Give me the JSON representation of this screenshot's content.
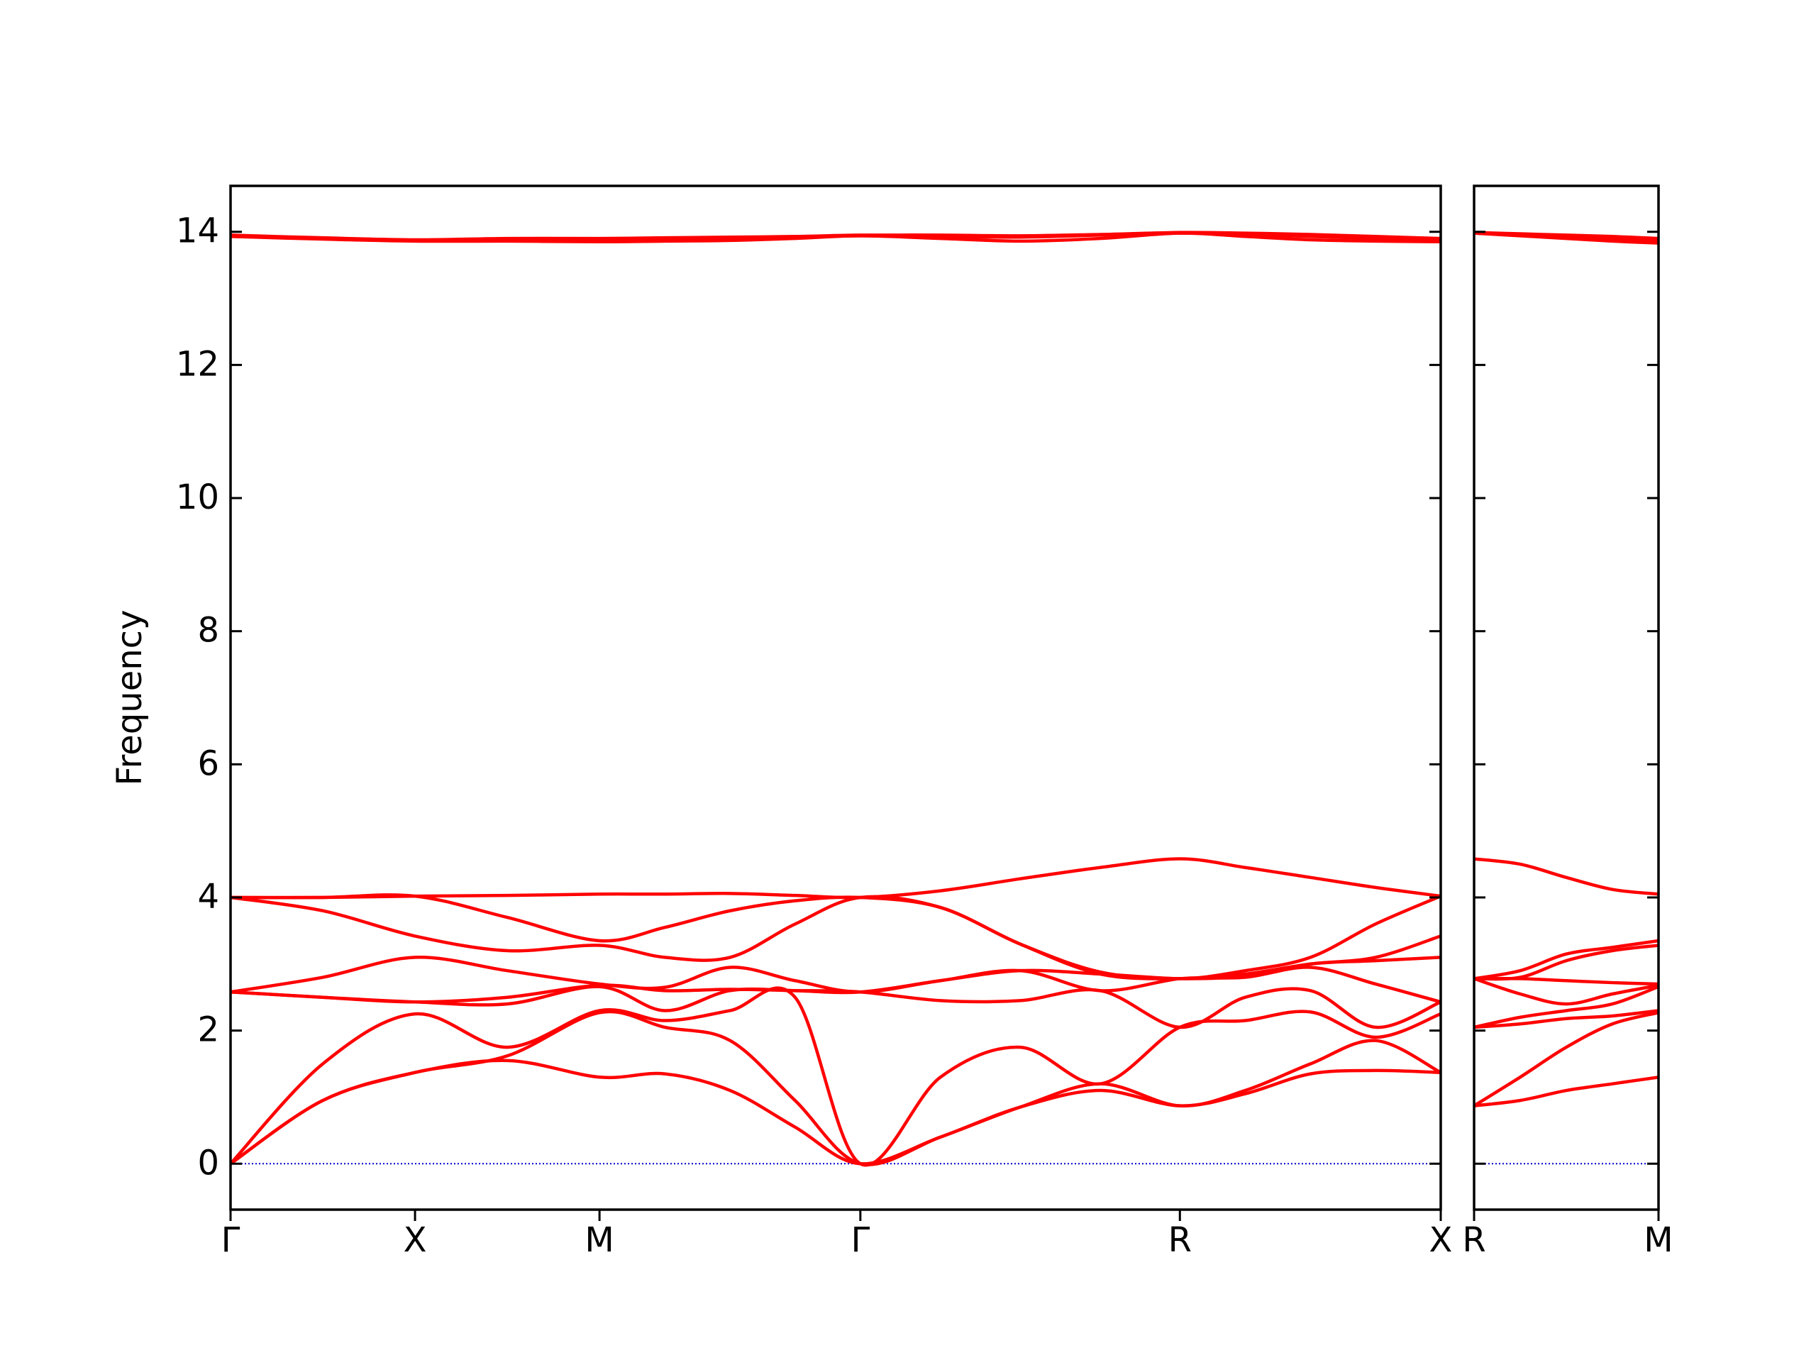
{
  "chart_data": [
    {
      "type": "line",
      "ylabel": "Frequency",
      "color": "#ff0000",
      "x": [
        0,
        0.25,
        0.5,
        0.75,
        1.0,
        1.177,
        1.354,
        1.53,
        1.707,
        1.924,
        2.14,
        2.357,
        2.573,
        2.75,
        2.927,
        3.103,
        3.28
      ],
      "xlim": [
        0,
        3.28
      ],
      "xticks": [
        {
          "value": 0,
          "label": "Γ"
        },
        {
          "value": 0.5,
          "label": "X"
        },
        {
          "value": 1.0,
          "label": "M"
        },
        {
          "value": 1.707,
          "label": "Γ"
        },
        {
          "value": 2.573,
          "label": "R"
        },
        {
          "value": 3.28,
          "label": "X"
        }
      ],
      "ylim": [
        -0.69,
        14.69
      ],
      "yticks": [
        0,
        2,
        4,
        6,
        8,
        10,
        12,
        14
      ],
      "ytick_labels": true,
      "mirror_ticks": true,
      "zero_line": {
        "y": 0,
        "color": "#0000cc"
      },
      "series": [
        {
          "values": [
            0,
            0.95,
            1.37,
            1.55,
            1.3,
            1.35,
            1.1,
            0.55,
            0,
            0.4,
            0.85,
            1.1,
            0.87,
            1.05,
            1.35,
            1.4,
            1.37
          ]
        },
        {
          "values": [
            0,
            0.95,
            1.37,
            1.62,
            2.27,
            2.05,
            1.85,
            0.95,
            0,
            0.4,
            0.85,
            1.2,
            0.87,
            1.1,
            1.5,
            1.85,
            1.37
          ]
        },
        {
          "values": [
            0,
            1.5,
            2.25,
            1.75,
            2.3,
            2.15,
            2.3,
            2.5,
            0,
            1.3,
            1.75,
            1.2,
            2.05,
            2.15,
            2.28,
            1.9,
            2.25
          ]
        },
        {
          "values": [
            2.58,
            2.5,
            2.43,
            2.4,
            2.66,
            2.3,
            2.6,
            2.6,
            2.58,
            2.45,
            2.45,
            2.6,
            2.05,
            2.5,
            2.6,
            2.05,
            2.43
          ]
        },
        {
          "values": [
            2.58,
            2.5,
            2.43,
            2.5,
            2.68,
            2.6,
            2.62,
            2.6,
            2.58,
            2.75,
            2.9,
            2.6,
            2.78,
            2.8,
            2.95,
            2.7,
            2.43
          ]
        },
        {
          "values": [
            2.58,
            2.8,
            3.1,
            2.9,
            2.7,
            2.65,
            2.95,
            2.75,
            2.58,
            2.75,
            2.9,
            2.85,
            2.78,
            2.82,
            3.0,
            3.05,
            3.1
          ]
        },
        {
          "values": [
            4.0,
            3.8,
            3.42,
            3.2,
            3.28,
            3.1,
            3.1,
            3.6,
            4.0,
            3.85,
            3.3,
            2.85,
            2.78,
            2.85,
            3.0,
            3.1,
            3.42
          ]
        },
        {
          "values": [
            4.0,
            4.0,
            4.02,
            3.7,
            3.35,
            3.55,
            3.8,
            3.95,
            4.0,
            3.85,
            3.3,
            2.88,
            2.78,
            2.9,
            3.1,
            3.6,
            4.02
          ]
        },
        {
          "values": [
            4.0,
            4.0,
            4.02,
            4.03,
            4.05,
            4.05,
            4.06,
            4.03,
            4.0,
            4.1,
            4.28,
            4.45,
            4.58,
            4.45,
            4.3,
            4.15,
            4.02
          ]
        },
        {
          "values": [
            13.93,
            13.9,
            13.87,
            13.88,
            13.89,
            13.9,
            13.91,
            13.92,
            13.94,
            13.93,
            13.92,
            13.95,
            13.98,
            13.96,
            13.93,
            13.9,
            13.87
          ]
        },
        {
          "values": [
            13.93,
            13.89,
            13.86,
            13.86,
            13.85,
            13.86,
            13.87,
            13.9,
            13.94,
            13.9,
            13.86,
            13.9,
            13.98,
            13.93,
            13.88,
            13.86,
            13.85
          ]
        },
        {
          "values": [
            13.95,
            13.91,
            13.88,
            13.9,
            13.9,
            13.91,
            13.92,
            13.93,
            13.95,
            13.95,
            13.94,
            13.96,
            13.99,
            13.98,
            13.96,
            13.93,
            13.9
          ]
        }
      ]
    },
    {
      "type": "line",
      "color": "#ff0000",
      "x": [
        3.28,
        3.405,
        3.53,
        3.655,
        3.78
      ],
      "xlim": [
        3.28,
        3.78
      ],
      "xticks": [
        {
          "value": 3.28,
          "label": "R"
        },
        {
          "value": 3.78,
          "label": "M"
        }
      ],
      "ylim": [
        -0.69,
        14.69
      ],
      "yticks": [
        0,
        2,
        4,
        6,
        8,
        10,
        12,
        14
      ],
      "ytick_labels": false,
      "mirror_ticks": true,
      "zero_line": {
        "y": 0,
        "color": "#0000cc"
      },
      "series": [
        {
          "values": [
            0.87,
            0.95,
            1.1,
            1.2,
            1.3
          ]
        },
        {
          "values": [
            0.87,
            1.3,
            1.75,
            2.1,
            2.27
          ]
        },
        {
          "values": [
            2.05,
            2.1,
            2.18,
            2.22,
            2.3
          ]
        },
        {
          "values": [
            2.05,
            2.2,
            2.3,
            2.4,
            2.66
          ]
        },
        {
          "values": [
            2.78,
            2.55,
            2.4,
            2.55,
            2.68
          ]
        },
        {
          "values": [
            2.78,
            2.78,
            2.75,
            2.72,
            2.7
          ]
        },
        {
          "values": [
            2.78,
            2.8,
            3.05,
            3.2,
            3.28
          ]
        },
        {
          "values": [
            2.78,
            2.9,
            3.15,
            3.25,
            3.35
          ]
        },
        {
          "values": [
            4.58,
            4.5,
            4.3,
            4.12,
            4.05
          ]
        },
        {
          "values": [
            13.98,
            13.95,
            13.92,
            13.9,
            13.87
          ]
        },
        {
          "values": [
            13.98,
            13.94,
            13.9,
            13.86,
            13.83
          ]
        },
        {
          "values": [
            13.99,
            13.97,
            13.95,
            13.93,
            13.9
          ]
        }
      ]
    }
  ]
}
